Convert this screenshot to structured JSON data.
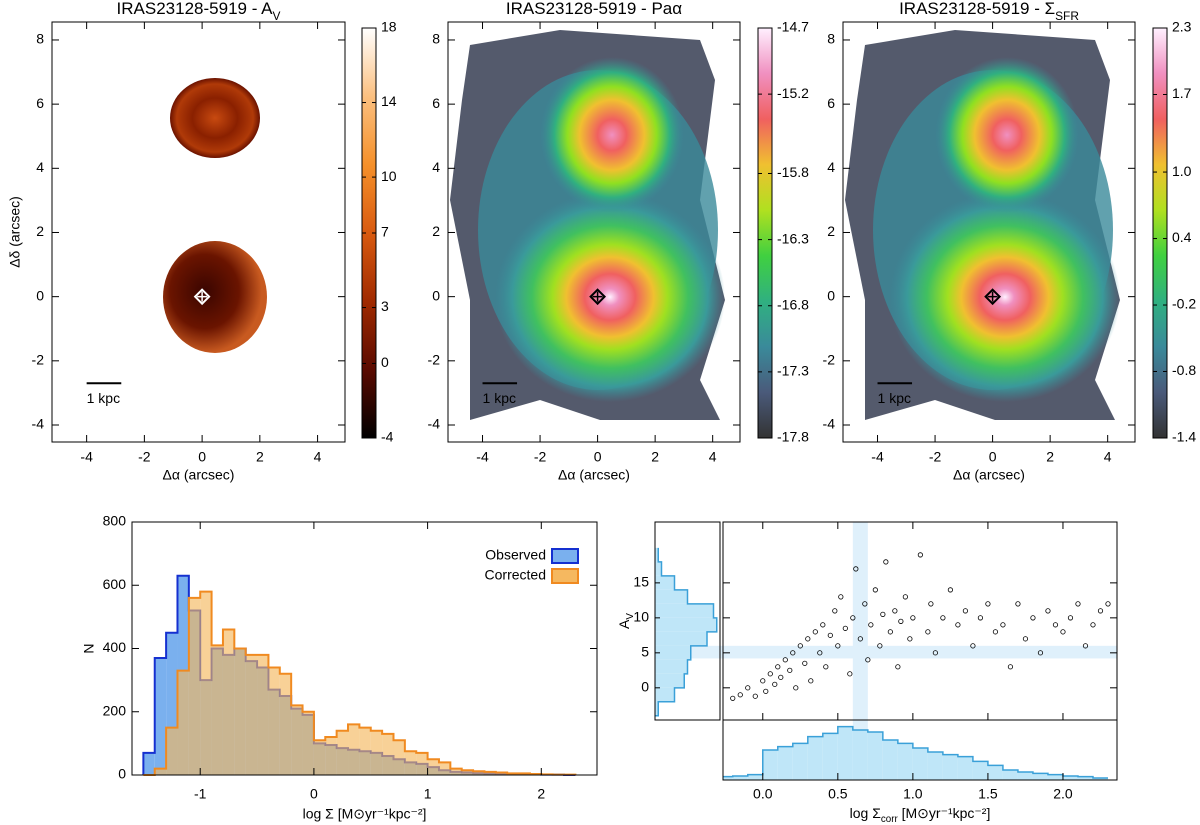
{
  "chart_data": [
    {
      "type": "image",
      "title": "IRAS23128-5919 - A",
      "title_subscript": "V",
      "xlabel": "Δα (arcsec)",
      "ylabel": "Δδ (arcsec)",
      "xlim": [
        -5.2,
        4.95
      ],
      "ylim": [
        -4.53,
        8.56
      ],
      "xticks": [
        -4,
        -2,
        0,
        2,
        4
      ],
      "yticks": [
        -4,
        -2,
        0,
        2,
        4,
        6,
        8
      ],
      "clim": [
        -4,
        18
      ],
      "cticks": [
        -4,
        0,
        3,
        7,
        10,
        14,
        18
      ],
      "colormap": [
        "#000000",
        "#5a0a00",
        "#a02a00",
        "#d85a10",
        "#f5902a",
        "#fbc080",
        "#ffffff"
      ],
      "marker": {
        "x": 0,
        "y": 0,
        "color": "#ffffff"
      },
      "scalebar": {
        "x": [
          -4,
          -2.8
        ],
        "y": -2.7,
        "label": "1 kpc"
      }
    },
    {
      "type": "image",
      "title": "IRAS23128-5919 - Paα",
      "xlabel": "Δα (arcsec)",
      "xlim": [
        -5.2,
        4.95
      ],
      "ylim": [
        -4.53,
        8.56
      ],
      "xticks": [
        -4,
        -2,
        0,
        2,
        4
      ],
      "yticks": [
        -4,
        -2,
        0,
        2,
        4,
        6,
        8
      ],
      "clim": [
        -17.8,
        -14.7
      ],
      "cticks": [
        -17.8,
        -17.3,
        -16.8,
        -16.3,
        -15.8,
        -15.2,
        -14.7
      ],
      "colormap": [
        "#333333",
        "#4a5a7a",
        "#3a8a9a",
        "#30b080",
        "#40d040",
        "#b0e020",
        "#f0c030",
        "#f06060",
        "#f090c0",
        "#fff0ff"
      ],
      "marker": {
        "x": 0,
        "y": 0,
        "color": "#000000"
      },
      "scalebar": {
        "x": [
          -4,
          -2.8
        ],
        "y": -2.7,
        "label": "1 kpc"
      }
    },
    {
      "type": "image",
      "title": "IRAS23128-5919 - Σ",
      "title_subscript": "SFR",
      "xlabel": "Δα (arcsec)",
      "xlim": [
        -5.2,
        4.95
      ],
      "ylim": [
        -4.53,
        8.56
      ],
      "xticks": [
        -4,
        -2,
        0,
        2,
        4
      ],
      "yticks": [
        -4,
        -2,
        0,
        2,
        4,
        6,
        8
      ],
      "clim": [
        -1.4,
        2.3
      ],
      "cticks": [
        -1.4,
        -0.8,
        -0.2,
        0.4,
        {
          "value": 1,
          "label": "1.0"
        },
        1.7,
        2.3
      ],
      "colormap": [
        "#333333",
        "#4a5a7a",
        "#3a8a9a",
        "#30b080",
        "#40d040",
        "#b0e020",
        "#f0c030",
        "#f06060",
        "#f090c0",
        "#fff0ff"
      ],
      "marker": {
        "x": 0,
        "y": 0,
        "color": "#000000"
      },
      "scalebar": {
        "x": [
          -4,
          -2.8
        ],
        "y": -2.7,
        "label": "1 kpc"
      }
    },
    {
      "type": "histogram",
      "xlabel": "log Σ [M⊙yr⁻¹kpc⁻²]",
      "ylabel": "N",
      "xlim": [
        -1.6,
        2.49
      ],
      "ylim": [
        0,
        800
      ],
      "xticks": [
        -1,
        0,
        1,
        2
      ],
      "yticks": [
        0,
        200,
        400,
        600,
        800
      ],
      "legend": "upper right",
      "bins": [
        -1.5,
        -1.4,
        -1.3,
        -1.2,
        -1.1,
        -1.0,
        -0.9,
        -0.8,
        -0.7,
        -0.6,
        -0.5,
        -0.4,
        -0.3,
        -0.2,
        -0.1,
        0,
        0.1,
        0.2,
        0.3,
        0.4,
        0.5,
        0.6,
        0.7,
        0.8,
        0.9,
        1.0,
        1.1,
        1.2,
        1.3,
        1.4,
        1.5,
        1.6,
        1.7,
        1.8,
        1.9,
        2.0,
        2.1,
        2.2,
        2.3
      ],
      "series": [
        {
          "name": "Observed",
          "color": "#1530d0",
          "fill": "#7ab0ee",
          "values": [
            70,
            370,
            450,
            630,
            520,
            300,
            400,
            380,
            400,
            360,
            340,
            270,
            250,
            210,
            190,
            100,
            95,
            85,
            80,
            75,
            70,
            60,
            50,
            40,
            35,
            25,
            15,
            10,
            8,
            6,
            5,
            4,
            3,
            2,
            2,
            1,
            1,
            0
          ]
        },
        {
          "name": "Corrected",
          "color": "#f08a20",
          "fill": "#f5b860",
          "values": [
            0,
            20,
            150,
            330,
            560,
            580,
            410,
            460,
            400,
            380,
            380,
            340,
            320,
            220,
            200,
            110,
            120,
            140,
            160,
            150,
            140,
            130,
            110,
            75,
            70,
            50,
            40,
            20,
            15,
            12,
            10,
            8,
            5,
            5,
            3,
            2,
            1,
            1
          ]
        }
      ]
    },
    {
      "type": "scatter",
      "xlabel": "log Σ",
      "xlabel_subscript": "corr",
      "xlabel_suffix": " [M⊙yr⁻¹kpc⁻²]",
      "ylabel": "A",
      "ylabel_subscript": "V",
      "xlim": [
        -0.265,
        2.36
      ],
      "ylim": [
        -4.6,
        23.7
      ],
      "xticks": [
        {
          "value": 0,
          "label": "0.0"
        },
        {
          "value": 0.5,
          "label": "0.5"
        },
        {
          "value": 1,
          "label": "1.0"
        },
        {
          "value": 1.5,
          "label": "1.5"
        },
        {
          "value": 2,
          "label": "2.0"
        }
      ],
      "yticks": [
        0,
        5,
        10,
        15
      ],
      "bands": {
        "x": [
          0.6,
          0.7
        ],
        "y": [
          4.2,
          6
        ]
      },
      "band_color": "#dff0fb",
      "color": "#000000",
      "hist_color": "#3aa0d8",
      "hist_fill": "#bfe6f8",
      "x": [
        -0.2,
        -0.15,
        -0.1,
        -0.05,
        0,
        0.02,
        0.05,
        0.08,
        0.1,
        0.12,
        0.15,
        0.18,
        0.2,
        0.22,
        0.25,
        0.28,
        0.3,
        0.32,
        0.35,
        0.38,
        0.4,
        0.42,
        0.45,
        0.48,
        0.5,
        0.52,
        0.55,
        0.58,
        0.6,
        0.62,
        0.65,
        0.68,
        0.7,
        0.72,
        0.75,
        0.78,
        0.8,
        0.82,
        0.85,
        0.88,
        0.9,
        0.92,
        0.95,
        0.98,
        1.0,
        1.05,
        1.1,
        1.12,
        1.15,
        1.2,
        1.25,
        1.3,
        1.35,
        1.4,
        1.45,
        1.5,
        1.55,
        1.6,
        1.65,
        1.7,
        1.75,
        1.8,
        1.85,
        1.9,
        1.95,
        2.0,
        2.05,
        2.1,
        2.15,
        2.2,
        2.25,
        2.3
      ],
      "values": [
        -1.5,
        -1,
        0,
        -1.2,
        1,
        -0.5,
        2,
        0.5,
        3,
        1.5,
        4,
        2.5,
        5,
        0,
        6,
        3.5,
        7,
        1,
        8,
        5,
        9,
        3,
        7.5,
        11,
        6,
        13,
        8.5,
        2,
        10,
        17,
        7,
        12,
        4,
        9,
        14,
        6,
        10.5,
        18,
        8,
        11,
        3,
        9.5,
        13,
        7,
        10,
        19,
        8,
        12,
        5,
        10,
        14,
        9,
        11,
        6,
        10,
        12,
        8,
        9,
        3,
        12,
        7,
        10,
        5,
        11,
        9,
        8,
        10,
        12,
        6,
        9,
        11,
        12
      ],
      "x_hist": {
        "bins": [
          -0.3,
          -0.2,
          -0.1,
          0,
          0.1,
          0.2,
          0.3,
          0.4,
          0.5,
          0.6,
          0.7,
          0.8,
          0.9,
          1.0,
          1.1,
          1.2,
          1.3,
          1.4,
          1.5,
          1.6,
          1.7,
          1.8,
          1.9,
          2.0,
          2.1,
          2.2,
          2.3
        ],
        "counts": [
          5,
          6,
          8,
          45,
          50,
          55,
          65,
          70,
          80,
          75,
          72,
          60,
          55,
          48,
          42,
          38,
          35,
          28,
          22,
          15,
          12,
          10,
          8,
          6,
          5,
          3
        ],
        "ylim": [
          0,
          90
        ]
      },
      "y_hist": {
        "bins": [
          -4,
          -2,
          0,
          2,
          4,
          6,
          8,
          10,
          12,
          14,
          16,
          18,
          20
        ],
        "counts": [
          5,
          30,
          45,
          50,
          55,
          80,
          95,
          90,
          50,
          30,
          10,
          5
        ],
        "xlim": [
          0,
          100
        ]
      }
    }
  ]
}
